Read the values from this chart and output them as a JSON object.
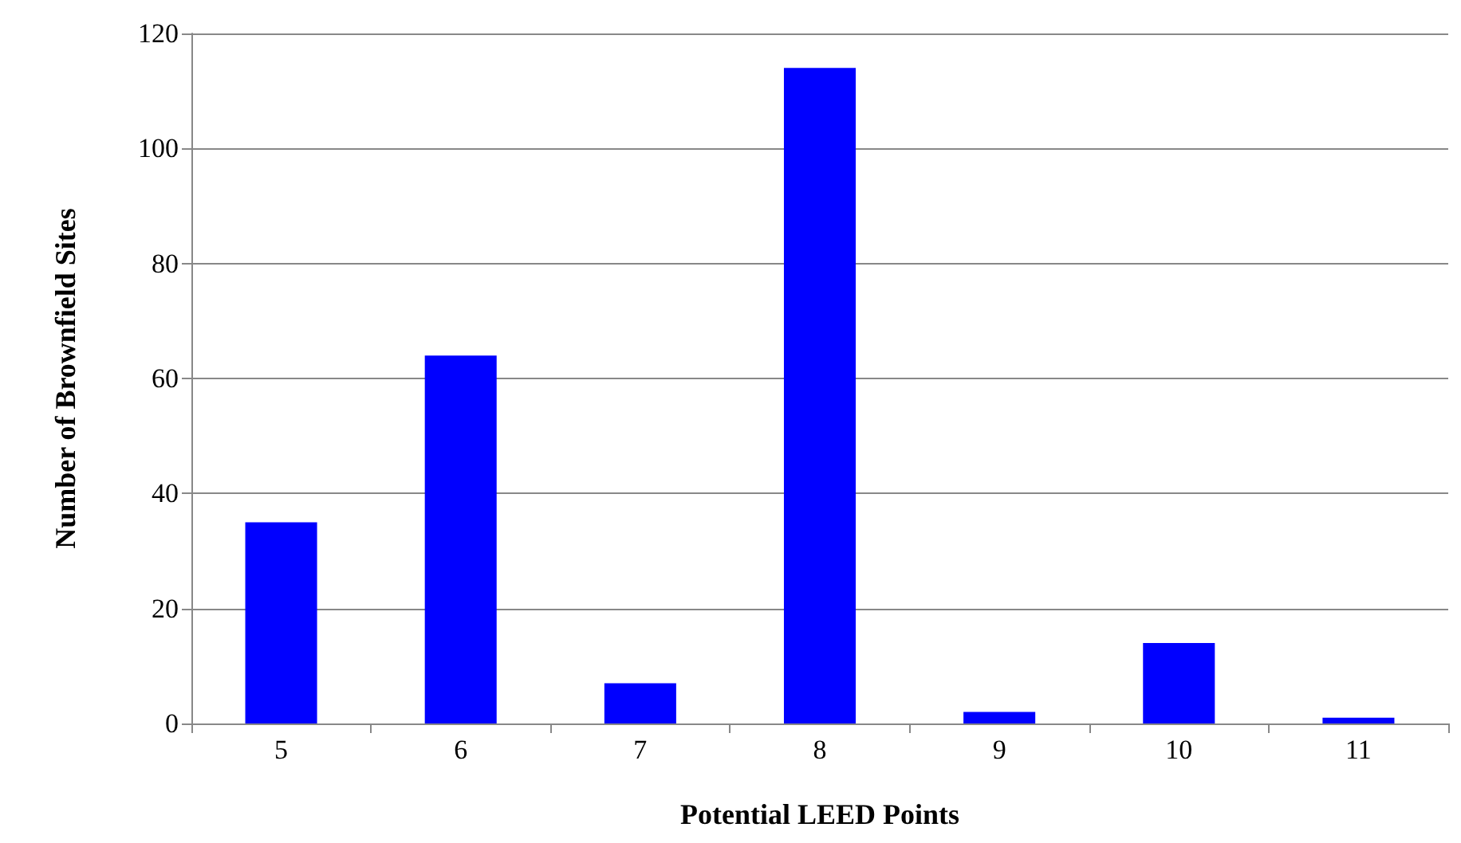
{
  "chart_data": {
    "type": "bar",
    "xlabel": "Potential LEED Points",
    "ylabel": "Number of Brownfield Sites",
    "categories": [
      "5",
      "6",
      "7",
      "8",
      "9",
      "10",
      "11"
    ],
    "values": [
      35,
      64,
      7,
      114,
      2,
      14,
      1
    ],
    "color": "#0000ff",
    "ylim": [
      0,
      120
    ],
    "yticks": [
      0,
      20,
      40,
      60,
      80,
      100,
      120
    ],
    "grid": "y"
  }
}
